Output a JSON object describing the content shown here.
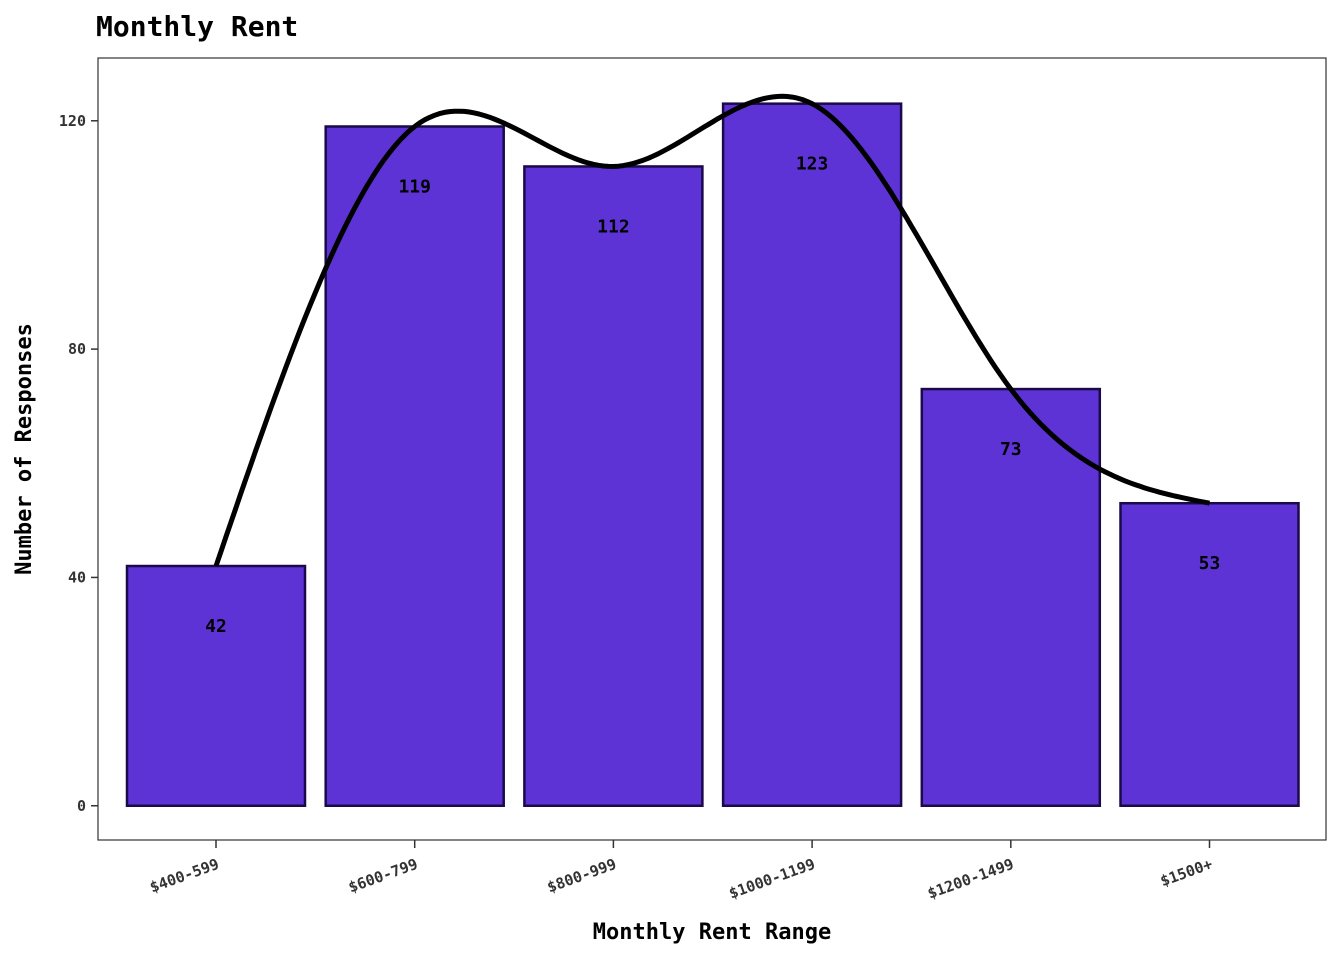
{
  "colors": {
    "bar_fill": "#5e33d6",
    "bar_stroke": "#1a0a4a",
    "curve": "#000000",
    "panel_border": "#333333",
    "background": "#ffffff"
  },
  "chart_data": {
    "type": "bar",
    "title": "Monthly Rent",
    "xlabel": "Monthly Rent Range",
    "ylabel": "Number of Responses",
    "categories": [
      "$400-599",
      "$600-799",
      "$800-999",
      "$1000-1199",
      "$1200-1499",
      "$1500+"
    ],
    "values": [
      42,
      119,
      112,
      123,
      73,
      53
    ],
    "data_labels": [
      "42",
      "119",
      "112",
      "123",
      "73",
      "53"
    ],
    "ylim": [
      -6,
      131
    ],
    "yticks": [
      0,
      40,
      80,
      120
    ],
    "ytick_labels": [
      "0",
      "40",
      "80",
      "120"
    ],
    "smooth_curve": true,
    "grid": false,
    "legend": "none"
  }
}
